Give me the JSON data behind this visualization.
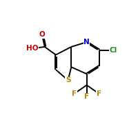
{
  "bg_color": "#ffffff",
  "bond_color": "#000000",
  "bond_lw": 1.4,
  "dbo": 0.11,
  "atoms": {
    "S": {
      "color": "#b8860b"
    },
    "N": {
      "color": "#0000cd"
    },
    "O": {
      "color": "#cc0000"
    },
    "Cl": {
      "color": "#228b22"
    },
    "F": {
      "color": "#b8860b"
    },
    "HO": {
      "color": "#cc0000"
    }
  },
  "figsize": [
    2.0,
    2.0
  ],
  "dpi": 100,
  "fontsize": 7.5
}
